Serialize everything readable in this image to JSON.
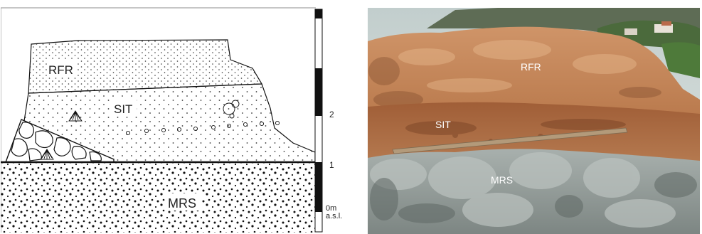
{
  "sketch": {
    "labels": {
      "rfr": "RFR",
      "sit": "SIT",
      "mrs": "MRS"
    }
  },
  "scale": {
    "ticks": [
      "2",
      "1",
      "0m",
      "a.s.l."
    ]
  },
  "photo": {
    "labels": {
      "rfr": "RFR",
      "sit": "SIT",
      "mrs": "MRS"
    }
  },
  "colors": {
    "ink": "#111111",
    "sky": "#cfd7d6",
    "rfr_rock": "#c98b5d",
    "sit_rock": "#a9683f",
    "mrs_rock": "#9ea7a5"
  }
}
